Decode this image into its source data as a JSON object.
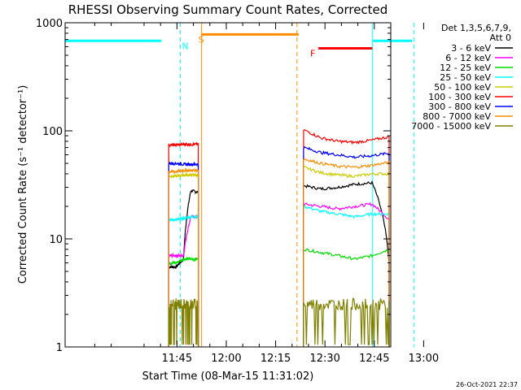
{
  "chart_data": {
    "type": "line",
    "title": "RHESSI Observing Summary Count Rates, Corrected",
    "xlabel": "Start Time (08-Mar-15 11:31:02)",
    "ylabel": "Corrected Count Rate (s⁻¹ detector⁻¹)",
    "yscale": "log",
    "ylim": [
      1,
      1000
    ],
    "xlim_minutes": [
      11.0,
      110.0
    ],
    "y_ticks": [
      {
        "value": 1,
        "label": "1"
      },
      {
        "value": 10,
        "label": "10"
      },
      {
        "value": 100,
        "label": "100"
      },
      {
        "value": 1000,
        "label": "1000"
      }
    ],
    "x_ticks": [
      {
        "minute": 45,
        "label": "11:45"
      },
      {
        "minute": 60,
        "label": "12:00"
      },
      {
        "minute": 75,
        "label": "12:15"
      },
      {
        "minute": 90,
        "label": "12:30"
      },
      {
        "minute": 105,
        "label": "12:45"
      },
      {
        "minute": 120,
        "label": "13:00"
      }
    ],
    "legend_header": [
      "Det 1,3,5,6,7,9,",
      "Att 0"
    ],
    "legend_position": "right",
    "series": [
      {
        "name": "3 - 6 keV",
        "color": "#000000",
        "seg1": [
          5.5,
          5.5,
          6.5,
          28,
          27
        ],
        "seg2": [
          31,
          29,
          30,
          32,
          33,
          6
        ]
      },
      {
        "name": "6 - 12 keV",
        "color": "#ff00ff",
        "seg1": [
          7,
          7,
          7,
          16,
          16
        ],
        "seg2": [
          21,
          20,
          19,
          20,
          21,
          15
        ]
      },
      {
        "name": "12 - 25 keV",
        "color": "#00dd00",
        "seg1": [
          6,
          6,
          6.5,
          6.5,
          6.5
        ],
        "seg2": [
          8,
          7.5,
          7,
          6.5,
          7,
          8
        ]
      },
      {
        "name": "25 - 50 keV",
        "color": "#00ffff",
        "seg1": [
          15,
          15,
          15.5,
          16,
          16
        ],
        "seg2": [
          20,
          18,
          17,
          16,
          17,
          17
        ]
      },
      {
        "name": "50 - 100 keV",
        "color": "#cccc00",
        "seg1": [
          38,
          38,
          39,
          39,
          39
        ],
        "seg2": [
          46,
          41,
          39,
          38,
          40,
          40
        ]
      },
      {
        "name": "100 - 300 keV",
        "color": "#ff0000",
        "seg1": [
          74,
          74,
          75,
          75,
          75
        ],
        "seg2": [
          102,
          86,
          80,
          78,
          82,
          88
        ]
      },
      {
        "name": "300 - 800 keV",
        "color": "#0000ff",
        "seg1": [
          50,
          50,
          49,
          49,
          49
        ],
        "seg2": [
          70,
          63,
          60,
          57,
          59,
          62
        ]
      },
      {
        "name": "800 - 7000 keV",
        "color": "#ff8c00",
        "seg1": [
          42,
          42,
          43,
          43,
          43
        ],
        "seg2": [
          55,
          50,
          47,
          46,
          48,
          51
        ]
      },
      {
        "name": "7000 - 15000 keV",
        "color": "#808000",
        "seg1": [
          2.5,
          2.5,
          2.5,
          2.5,
          2.5
        ],
        "seg2": [
          2.5,
          2.5,
          2.5,
          2.5,
          2.5,
          2.5
        ]
      }
    ],
    "segment1_minutes": [
      42.5,
      51.5
    ],
    "segment2_minutes": [
      83.5,
      109.5
    ],
    "annotations": [
      {
        "type": "night",
        "label": "N",
        "color": "#00ffff",
        "bar_minutes": [
          11,
          40.3
        ],
        "bar_value": 680,
        "lines_minutes": [
          11,
          46
        ],
        "label_minute": 46.5
      },
      {
        "type": "saa",
        "label": "S",
        "color": "#ff8c00",
        "bar_minutes": [
          52.5,
          82
        ],
        "bar_value": 780,
        "lines_minutes": [
          52.5,
          81.5
        ],
        "label_minute": 51.5
      },
      {
        "type": "flare",
        "label": "F",
        "color": "#ff0000",
        "bar_minutes": [
          88,
          104.5
        ],
        "bar_value": 580,
        "label_minute": 85.5
      },
      {
        "type": "night",
        "label": "",
        "color": "#00ffff",
        "bar_minutes": [
          104.5,
          116.5
        ],
        "bar_value": 680,
        "lines_minutes": [
          104.5,
          117
        ]
      }
    ],
    "timestamp": "26-Oct-2021 22:37"
  }
}
